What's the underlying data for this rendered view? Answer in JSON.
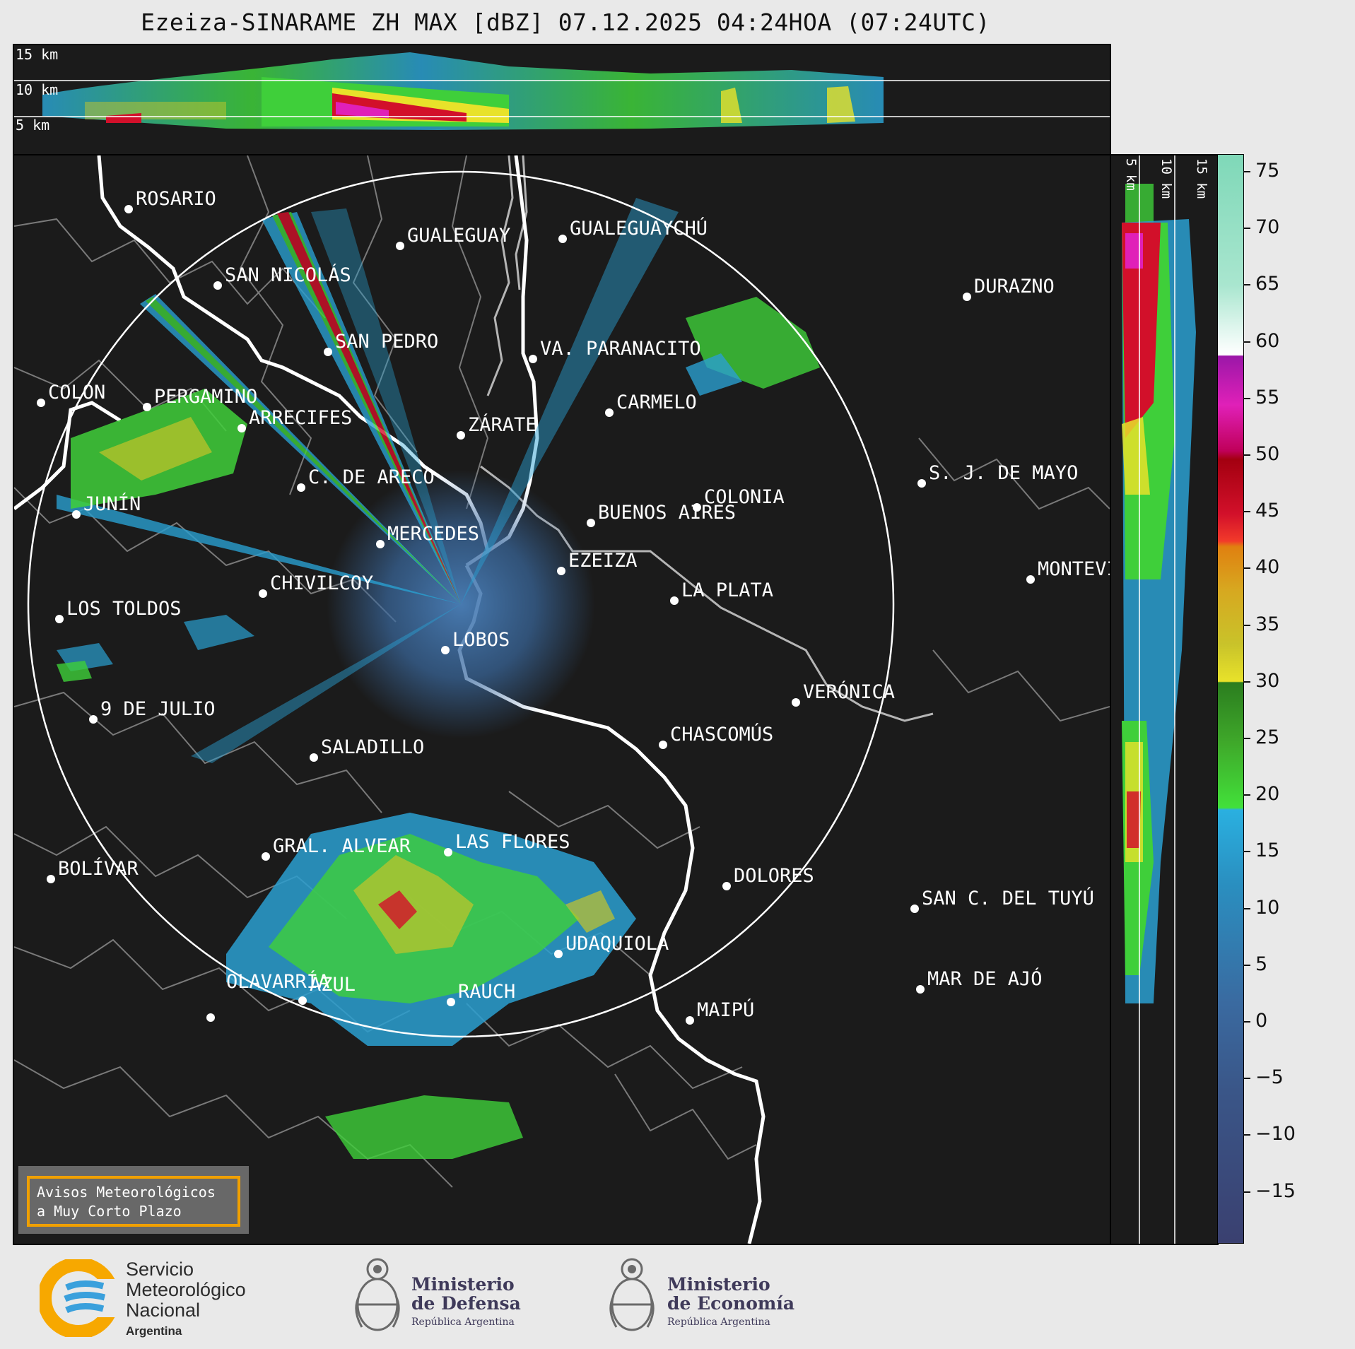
{
  "title": "Ezeiza-SINARAME ZH MAX [dBZ] 07.12.2025 04:24HOA (07:24UTC)",
  "altitude_labels": {
    "top": [
      "15 km",
      "10 km",
      "5 km"
    ],
    "side": [
      "5 km",
      "10 km",
      "15 km"
    ]
  },
  "colorbar": {
    "unit": "dBZ",
    "ticks": [
      "75",
      "70",
      "65",
      "60",
      "55",
      "50",
      "45",
      "40",
      "35",
      "30",
      "25",
      "20",
      "15",
      "10",
      "5",
      "0",
      "−5",
      "−10",
      "−15"
    ]
  },
  "cities": [
    {
      "name": "ROSARIO"
    },
    {
      "name": "GUALEGUAYCHÚ"
    },
    {
      "name": "GUALEGUAY"
    },
    {
      "name": "SAN NICOLÁS"
    },
    {
      "name": "DURAZNO"
    },
    {
      "name": "SAN PEDRO"
    },
    {
      "name": "VA. PARANACITO"
    },
    {
      "name": "COLON"
    },
    {
      "name": "PERGAMINO"
    },
    {
      "name": "CARMELO"
    },
    {
      "name": "ARRECIFES"
    },
    {
      "name": "ZÁRATE"
    },
    {
      "name": "C. DE ARECO"
    },
    {
      "name": "S. J. DE MAYO"
    },
    {
      "name": "COLONIA"
    },
    {
      "name": "JUNÍN"
    },
    {
      "name": "BUENOS AIRES"
    },
    {
      "name": "MERCEDES"
    },
    {
      "name": "MONTEVIDEO"
    },
    {
      "name": "EZEIZA"
    },
    {
      "name": "CHIVILCOY"
    },
    {
      "name": "LA PLATA"
    },
    {
      "name": "LOS TOLDOS"
    },
    {
      "name": "LOBOS"
    },
    {
      "name": "VERÓNICA"
    },
    {
      "name": "9 DE JULIO"
    },
    {
      "name": "CHASCOMÚS"
    },
    {
      "name": "SALADILLO"
    },
    {
      "name": "GRAL. ALVEAR"
    },
    {
      "name": "LAS FLORES"
    },
    {
      "name": "BOLÍVAR"
    },
    {
      "name": "DOLORES"
    },
    {
      "name": "SAN C. DEL TUYÚ"
    },
    {
      "name": "UDAQUIOLA"
    },
    {
      "name": "MAR DE AJÓ"
    },
    {
      "name": "AZUL"
    },
    {
      "name": "RAUCH"
    },
    {
      "name": "OLAVARRÍA"
    },
    {
      "name": "MAIPÚ"
    }
  ],
  "notice": {
    "line1": "Avisos Meteorológicos",
    "line2": "a Muy Corto Plazo",
    "accent": "#f0a000"
  },
  "logos": {
    "smn": {
      "line1": "Servicio",
      "line2": "Meteorológico",
      "line3": "Nacional",
      "line4": "Argentina"
    },
    "defensa": {
      "line1": "Ministerio",
      "line2": "de Defensa",
      "line3": "República Argentina"
    },
    "economia": {
      "line1": "Ministerio",
      "line2": "de Economía",
      "line3": "República Argentina"
    }
  },
  "colors": {
    "background": "#1b1b1b",
    "coast": "#ffffff",
    "borders": "#7a7a7a",
    "range_ring": "#ffffff"
  }
}
